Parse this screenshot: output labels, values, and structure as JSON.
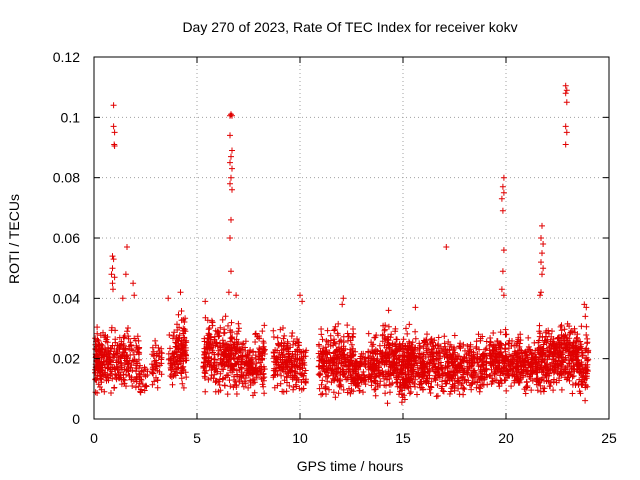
{
  "chart_data": {
    "type": "scatter",
    "title": "Day 270 of 2023, Rate Of TEC Index for receiver kokv",
    "xlabel": "GPS time / hours",
    "ylabel": "ROTI / TECUs",
    "xlim": [
      0,
      25
    ],
    "ylim": [
      0,
      0.12
    ],
    "xticks": [
      0,
      5,
      10,
      15,
      20,
      25
    ],
    "yticks": [
      0,
      0.02,
      0.04,
      0.06,
      0.08,
      0.1,
      0.12
    ],
    "xtick_labels": [
      "0",
      "5",
      "10",
      "15",
      "20",
      "25"
    ],
    "ytick_labels": [
      "0",
      "0.02",
      "0.04",
      "0.06",
      "0.08",
      "0.1",
      "0.12"
    ],
    "grid": true,
    "marker": "+",
    "series": [
      {
        "name": "ROTI",
        "color": "#e00000",
        "bands": [
          [
            0.05,
            0.4,
            0.006,
            0.03,
            30
          ],
          [
            0.4,
            1.3,
            0.005,
            0.032,
            40
          ],
          [
            1.3,
            2.2,
            0.006,
            0.03,
            35
          ],
          [
            2.2,
            2.6,
            0.007,
            0.02,
            8
          ],
          [
            2.8,
            3.3,
            0.008,
            0.028,
            15
          ],
          [
            3.6,
            4.0,
            0.008,
            0.028,
            14
          ],
          [
            4.0,
            4.5,
            0.008,
            0.036,
            30
          ],
          [
            5.3,
            6.2,
            0.006,
            0.035,
            45
          ],
          [
            6.2,
            7.2,
            0.004,
            0.033,
            55
          ],
          [
            7.2,
            7.8,
            0.006,
            0.026,
            25
          ],
          [
            7.8,
            8.3,
            0.006,
            0.032,
            22
          ],
          [
            8.7,
            9.7,
            0.006,
            0.03,
            45
          ],
          [
            9.7,
            10.3,
            0.006,
            0.028,
            25
          ],
          [
            10.9,
            11.7,
            0.005,
            0.03,
            40
          ],
          [
            11.7,
            12.6,
            0.005,
            0.032,
            50
          ],
          [
            12.6,
            13.2,
            0.006,
            0.024,
            25
          ],
          [
            13.3,
            14.0,
            0.005,
            0.028,
            35
          ],
          [
            14.0,
            14.7,
            0.004,
            0.032,
            45
          ],
          [
            14.7,
            15.4,
            0.003,
            0.03,
            55
          ],
          [
            15.4,
            16.0,
            0.005,
            0.028,
            35
          ],
          [
            16.0,
            16.8,
            0.005,
            0.03,
            40
          ],
          [
            16.8,
            17.6,
            0.005,
            0.028,
            40
          ],
          [
            17.6,
            18.4,
            0.005,
            0.028,
            35
          ],
          [
            18.4,
            19.1,
            0.006,
            0.028,
            30
          ],
          [
            19.2,
            20.0,
            0.007,
            0.03,
            45
          ],
          [
            20.0,
            20.8,
            0.006,
            0.03,
            40
          ],
          [
            20.8,
            21.6,
            0.005,
            0.028,
            40
          ],
          [
            21.6,
            22.3,
            0.006,
            0.03,
            40
          ],
          [
            22.3,
            23.0,
            0.006,
            0.032,
            45
          ],
          [
            23.0,
            23.5,
            0.007,
            0.032,
            30
          ],
          [
            23.5,
            24.0,
            0.004,
            0.03,
            30
          ]
        ],
        "outliers": [
          [
            0.95,
            0.104
          ],
          [
            0.95,
            0.097
          ],
          [
            1.0,
            0.095
          ],
          [
            0.98,
            0.091
          ],
          [
            1.0,
            0.0905
          ],
          [
            0.9,
            0.054
          ],
          [
            0.95,
            0.053
          ],
          [
            0.9,
            0.05
          ],
          [
            0.85,
            0.048
          ],
          [
            1.0,
            0.047
          ],
          [
            0.9,
            0.045
          ],
          [
            0.92,
            0.043
          ],
          [
            1.6,
            0.057
          ],
          [
            1.55,
            0.048
          ],
          [
            1.4,
            0.04
          ],
          [
            1.9,
            0.045
          ],
          [
            1.95,
            0.041
          ],
          [
            6.6,
            0.1005
          ],
          [
            6.65,
            0.101
          ],
          [
            6.7,
            0.1005
          ],
          [
            6.6,
            0.094
          ],
          [
            6.7,
            0.089
          ],
          [
            6.65,
            0.087
          ],
          [
            6.6,
            0.085
          ],
          [
            6.7,
            0.083
          ],
          [
            6.65,
            0.08
          ],
          [
            6.6,
            0.078
          ],
          [
            6.7,
            0.076
          ],
          [
            6.65,
            0.066
          ],
          [
            6.6,
            0.06
          ],
          [
            6.65,
            0.049
          ],
          [
            6.55,
            0.042
          ],
          [
            6.9,
            0.041
          ],
          [
            4.2,
            0.042
          ],
          [
            3.6,
            0.04
          ],
          [
            5.4,
            0.039
          ],
          [
            10.0,
            0.041
          ],
          [
            10.1,
            0.039
          ],
          [
            12.1,
            0.04
          ],
          [
            12.05,
            0.038
          ],
          [
            14.3,
            0.036
          ],
          [
            15.6,
            0.037
          ],
          [
            17.1,
            0.057
          ],
          [
            19.9,
            0.08
          ],
          [
            19.85,
            0.077
          ],
          [
            19.9,
            0.075
          ],
          [
            19.8,
            0.073
          ],
          [
            19.85,
            0.069
          ],
          [
            19.9,
            0.056
          ],
          [
            19.85,
            0.049
          ],
          [
            19.8,
            0.043
          ],
          [
            19.9,
            0.041
          ],
          [
            21.75,
            0.064
          ],
          [
            21.7,
            0.06
          ],
          [
            21.8,
            0.058
          ],
          [
            21.75,
            0.055
          ],
          [
            21.7,
            0.052
          ],
          [
            21.8,
            0.05
          ],
          [
            21.75,
            0.048
          ],
          [
            21.7,
            0.042
          ],
          [
            21.65,
            0.041
          ],
          [
            22.9,
            0.1105
          ],
          [
            22.95,
            0.109
          ],
          [
            22.9,
            0.108
          ],
          [
            22.95,
            0.105
          ],
          [
            22.9,
            0.097
          ],
          [
            22.95,
            0.095
          ],
          [
            22.9,
            0.091
          ],
          [
            23.8,
            0.038
          ],
          [
            23.9,
            0.037
          ],
          [
            23.85,
            0.034
          ]
        ]
      }
    ]
  }
}
